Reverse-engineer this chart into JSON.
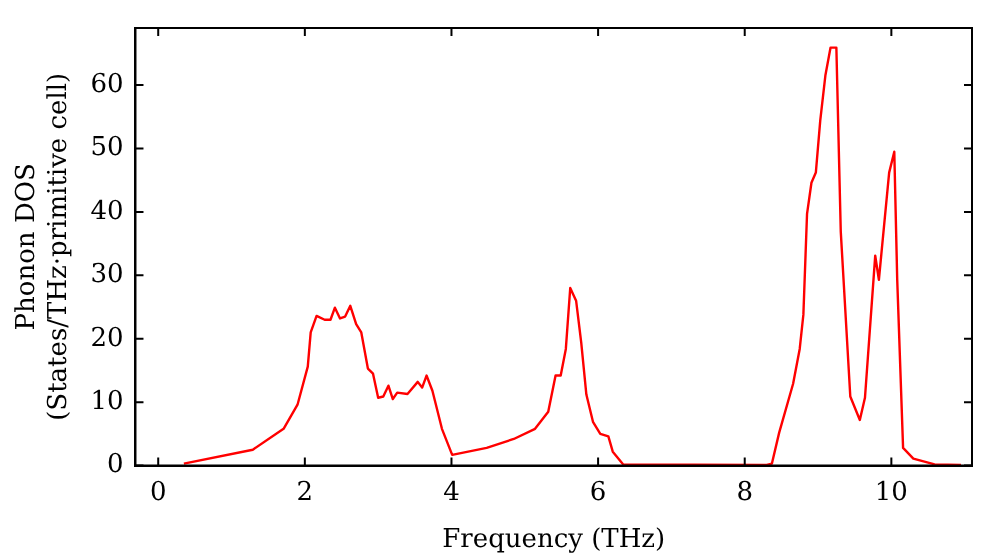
{
  "chart_data": {
    "type": "line",
    "xlabel": "Frequency (THz)",
    "ylabel": "Phonon DOS\n(States/THz·primitive cell)",
    "xlim": [
      -0.31,
      11.1
    ],
    "ylim": [
      0,
      69
    ],
    "xticks": [
      0,
      2,
      4,
      6,
      8,
      10
    ],
    "yticks": [
      0,
      10,
      20,
      30,
      40,
      50,
      60
    ],
    "grid": false,
    "legend": false,
    "marker": "none",
    "line_style": "solid",
    "series": [
      {
        "color": "#ff0000",
        "x": [
          0.35,
          1.29,
          1.71,
          1.9,
          2.04,
          2.08,
          2.16,
          2.27,
          2.35,
          2.41,
          2.48,
          2.55,
          2.62,
          2.7,
          2.77,
          2.86,
          2.93,
          3.0,
          3.07,
          3.14,
          3.2,
          3.26,
          3.4,
          3.54,
          3.6,
          3.66,
          3.74,
          3.87,
          4.01,
          4.48,
          4.85,
          5.14,
          5.32,
          5.42,
          5.49,
          5.56,
          5.62,
          5.7,
          5.77,
          5.84,
          5.93,
          6.03,
          6.14,
          6.2,
          6.34,
          8.3,
          8.37,
          8.47,
          8.66,
          8.75,
          8.8,
          8.85,
          8.91,
          8.97,
          9.03,
          9.1,
          9.17,
          9.25,
          9.31,
          9.44,
          9.57,
          9.64,
          9.78,
          9.83,
          9.97,
          10.04,
          10.08,
          10.16,
          10.3,
          10.59,
          10.95
        ],
        "values": [
          0.3,
          2.5,
          5.8,
          9.6,
          15.6,
          21,
          23.6,
          23,
          23,
          24.9,
          23.2,
          23.5,
          25.2,
          22.3,
          21,
          15.3,
          14.5,
          10.7,
          10.9,
          12.6,
          10.5,
          11.5,
          11.3,
          13.2,
          12.3,
          14.2,
          11.8,
          5.8,
          1.7,
          2.8,
          4.2,
          5.8,
          8.5,
          14.2,
          14.2,
          18.4,
          28,
          26,
          19.4,
          11.2,
          6.9,
          5,
          4.6,
          2.2,
          0.2,
          0.1,
          0.3,
          5.2,
          12.9,
          18.4,
          23.8,
          39.7,
          44.6,
          46.2,
          54.4,
          61.5,
          65.9,
          65.9,
          36.9,
          10.9,
          7.2,
          10.7,
          33.1,
          29.3,
          46.2,
          49.5,
          29.3,
          2.8,
          1.1,
          0.2,
          0.1
        ]
      }
    ]
  }
}
